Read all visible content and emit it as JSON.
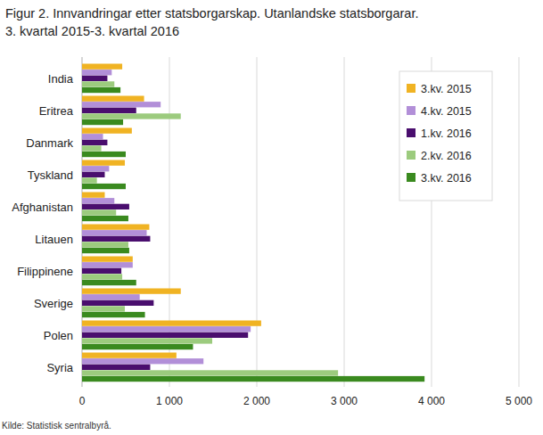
{
  "chart_data": {
    "type": "bar",
    "orientation": "horizontal",
    "title": "Figur 2. Innvandringar etter statsborgarskap. Utanlandske statsborgarar.",
    "subtitle": "3. kvartal 2015-3. kvartal 2016",
    "source": "Kilde: Statistisk sentralbyrå.",
    "categories": [
      "India",
      "Eritrea",
      "Danmark",
      "Tyskland",
      "Afghanistan",
      "Litauen",
      "Filippinene",
      "Sverige",
      "Polen",
      "Syria"
    ],
    "series": [
      {
        "name": "3.kv. 2015",
        "color": "#f0b323",
        "values": [
          460,
          710,
          570,
          490,
          260,
          770,
          580,
          1130,
          2050,
          1080
        ]
      },
      {
        "name": "4.kv. 2015",
        "color": "#b28fd8",
        "values": [
          340,
          900,
          240,
          310,
          370,
          740,
          580,
          660,
          1930,
          1390
        ]
      },
      {
        "name": "1.kv. 2016",
        "color": "#4a0e6e",
        "values": [
          290,
          620,
          290,
          260,
          540,
          780,
          450,
          820,
          1900,
          780
        ]
      },
      {
        "name": "2.kv. 2016",
        "color": "#9ccb7e",
        "values": [
          370,
          1130,
          220,
          170,
          390,
          530,
          460,
          490,
          1490,
          2930
        ]
      },
      {
        "name": "3.kv. 2016",
        "color": "#3a8a1f",
        "values": [
          440,
          470,
          500,
          500,
          530,
          540,
          620,
          720,
          1270,
          3920
        ]
      }
    ],
    "xlim": [
      0,
      5000
    ],
    "xticks": [
      0,
      {
        "value": 1000,
        "label": "1 000"
      },
      {
        "value": 2000,
        "label": "2 000"
      },
      {
        "value": 3000,
        "label": "3 000"
      },
      {
        "value": 4000,
        "label": "4 000"
      },
      {
        "value": 5000,
        "label": "5 000"
      }
    ],
    "grid": true,
    "legend": "top-right"
  }
}
